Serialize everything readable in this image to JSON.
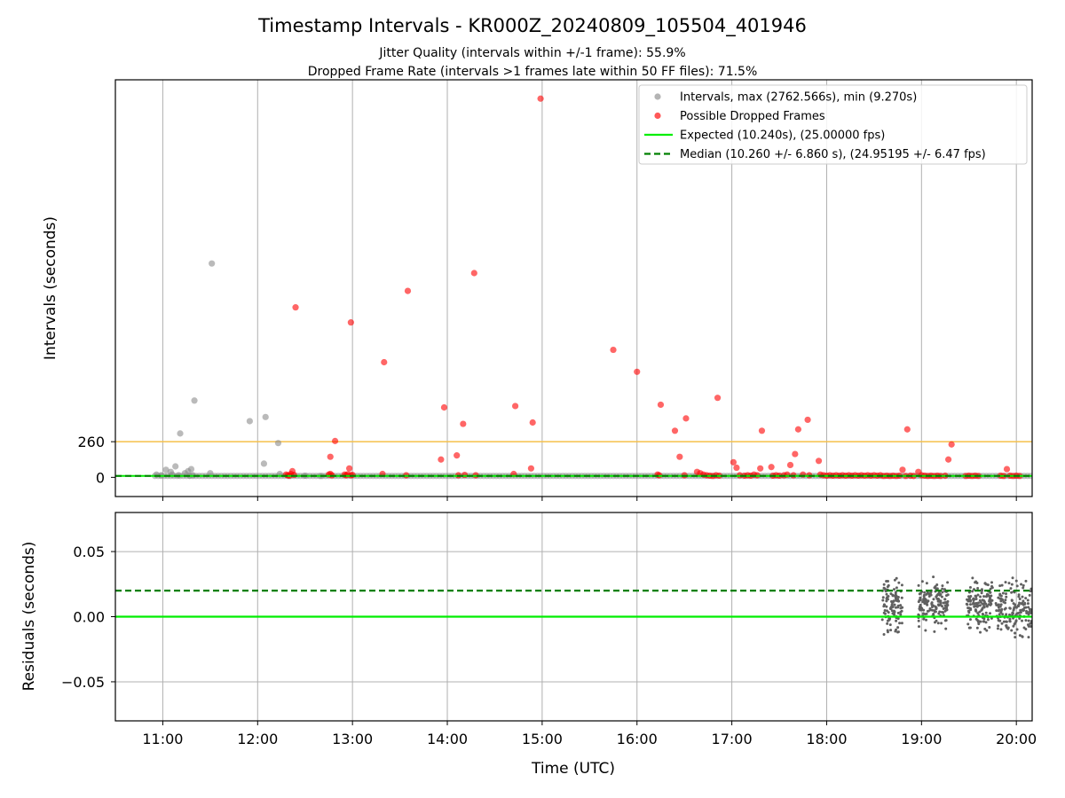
{
  "colors": {
    "frame": "#000000",
    "grid": "#b0b0b0",
    "threshold": "#f5c04a",
    "interval": "#8c8c8c",
    "dropped": "#ff0000",
    "expected": "#00ee00",
    "median": "#008000",
    "residual": "#606060"
  },
  "chart_data": [
    {
      "type": "scatter",
      "title": "Timestamp Intervals - KR000Z_20240809_105504_401946",
      "subtitle_lines": [
        "Jitter Quality (intervals within +/-1 frame): 55.9%",
        "Dropped Frame Rate (intervals >1 frames late within 50 FF files): 71.5%"
      ],
      "xlabel": "",
      "ylabel": "Intervals (seconds)",
      "x_axis": "time_utc",
      "xlim": [
        "10:30",
        "20:10"
      ],
      "ylim": [
        -140,
        2900
      ],
      "yticks": [
        0,
        260
      ],
      "ytick_labels": [
        "0",
        "260"
      ],
      "xgrid": true,
      "ygrid": false,
      "threshold_line": {
        "y": 260
      },
      "legend_position": "top-right",
      "legend": [
        {
          "key": "intervals",
          "marker": "dot",
          "label": "Intervals, max (2762.566s), min (9.270s)"
        },
        {
          "key": "dropped",
          "marker": "dot",
          "label": "Possible Dropped Frames"
        },
        {
          "key": "expected",
          "marker": "line",
          "label": "Expected (10.240s), (25.00000 fps)"
        },
        {
          "key": "median",
          "marker": "dash",
          "label": "Median (10.260 +/- 6.860 s), (24.95195 +/- 6.47 fps)"
        }
      ],
      "lines": {
        "expected": 10.24,
        "median": 10.26
      },
      "series": [
        {
          "name": "Intervals, max (2762.566s), min (9.270s)",
          "points": [
            [
              "10:56",
              20
            ],
            [
              "10:59",
              15
            ],
            [
              "11:02",
              55
            ],
            [
              "11:05",
              40
            ],
            [
              "11:06",
              20
            ],
            [
              "11:08",
              80
            ],
            [
              "11:10",
              15
            ],
            [
              "11:11",
              320
            ],
            [
              "11:14",
              30
            ],
            [
              "11:16",
              45
            ],
            [
              "11:17",
              12
            ],
            [
              "11:18",
              60
            ],
            [
              "11:19",
              15
            ],
            [
              "11:20",
              560
            ],
            [
              "11:30",
              30
            ],
            [
              "11:31",
              1560
            ],
            [
              "11:55",
              410
            ],
            [
              "12:04",
              100
            ],
            [
              "12:05",
              440
            ],
            [
              "12:13",
              250
            ],
            [
              "12:14",
              25
            ],
            [
              "12:20",
              10
            ],
            [
              "12:30",
              12
            ],
            [
              "12:40",
              10
            ]
          ]
        },
        {
          "name": "Possible Dropped Frames",
          "points": [
            [
              "12:18",
              20
            ],
            [
              "12:19",
              15
            ],
            [
              "12:20",
              12
            ],
            [
              "12:21",
              25
            ],
            [
              "12:22",
              45
            ],
            [
              "12:23",
              18
            ],
            [
              "12:24",
              1240
            ],
            [
              "12:45",
              20
            ],
            [
              "12:46",
              25
            ],
            [
              "12:47",
              15
            ],
            [
              "12:46",
              150
            ],
            [
              "12:49",
              265
            ],
            [
              "12:55",
              20
            ],
            [
              "12:56",
              15
            ],
            [
              "12:57",
              22
            ],
            [
              "12:58",
              65
            ],
            [
              "12:59",
              15
            ],
            [
              "13:00",
              18
            ],
            [
              "12:59",
              1130
            ],
            [
              "13:19",
              25
            ],
            [
              "13:20",
              840
            ],
            [
              "13:34",
              15
            ],
            [
              "13:35",
              1360
            ],
            [
              "13:56",
              130
            ],
            [
              "13:58",
              510
            ],
            [
              "14:06",
              160
            ],
            [
              "14:07",
              15
            ],
            [
              "14:10",
              390
            ],
            [
              "14:11",
              18
            ],
            [
              "14:17",
              1490
            ],
            [
              "14:18",
              15
            ],
            [
              "14:42",
              25
            ],
            [
              "14:43",
              520
            ],
            [
              "14:53",
              65
            ],
            [
              "14:54",
              400
            ],
            [
              "14:59",
              2762.566
            ],
            [
              "15:45",
              930
            ],
            [
              "16:00",
              770
            ],
            [
              "16:13",
              20
            ],
            [
              "16:14",
              15
            ],
            [
              "16:15",
              530
            ],
            [
              "16:24",
              340
            ],
            [
              "16:27",
              150
            ],
            [
              "16:30",
              15
            ],
            [
              "16:31",
              430
            ],
            [
              "16:38",
              40
            ],
            [
              "16:40",
              30
            ],
            [
              "16:42",
              20
            ],
            [
              "16:44",
              15
            ],
            [
              "16:46",
              12
            ],
            [
              "16:48",
              10
            ],
            [
              "16:50",
              15
            ],
            [
              "16:51",
              580
            ],
            [
              "16:52",
              12
            ],
            [
              "17:01",
              110
            ],
            [
              "17:03",
              70
            ],
            [
              "17:05",
              15
            ],
            [
              "17:08",
              12
            ],
            [
              "17:10",
              15
            ],
            [
              "17:12",
              12
            ],
            [
              "17:14",
              20
            ],
            [
              "17:16",
              15
            ],
            [
              "17:18",
              65
            ],
            [
              "17:19",
              340
            ],
            [
              "17:25",
              75
            ],
            [
              "17:26",
              12
            ],
            [
              "17:28",
              15
            ],
            [
              "17:30",
              12
            ],
            [
              "17:33",
              15
            ],
            [
              "17:35",
              20
            ],
            [
              "17:37",
              90
            ],
            [
              "17:39",
              15
            ],
            [
              "17:40",
              170
            ],
            [
              "17:42",
              350
            ],
            [
              "17:45",
              20
            ],
            [
              "17:48",
              420
            ],
            [
              "17:49",
              15
            ],
            [
              "17:55",
              120
            ],
            [
              "17:56",
              20
            ],
            [
              "17:58",
              15
            ],
            [
              "18:00",
              12
            ],
            [
              "18:02",
              15
            ],
            [
              "18:04",
              12
            ],
            [
              "18:06",
              15
            ],
            [
              "18:08",
              12
            ],
            [
              "18:10",
              15
            ],
            [
              "18:12",
              12
            ],
            [
              "18:14",
              15
            ],
            [
              "18:16",
              12
            ],
            [
              "18:18",
              15
            ],
            [
              "18:20",
              12
            ],
            [
              "18:22",
              15
            ],
            [
              "18:24",
              12
            ],
            [
              "18:26",
              15
            ],
            [
              "18:28",
              12
            ],
            [
              "18:30",
              15
            ],
            [
              "18:32",
              12
            ],
            [
              "18:34",
              15
            ],
            [
              "18:36",
              10
            ],
            [
              "18:38",
              12
            ],
            [
              "18:40",
              10
            ],
            [
              "18:42",
              12
            ],
            [
              "18:44",
              10
            ],
            [
              "18:46",
              12
            ],
            [
              "18:48",
              55
            ],
            [
              "18:50",
              10
            ],
            [
              "18:51",
              350
            ],
            [
              "18:53",
              12
            ],
            [
              "18:55",
              10
            ],
            [
              "18:58",
              40
            ],
            [
              "19:00",
              15
            ],
            [
              "19:02",
              12
            ],
            [
              "19:04",
              10
            ],
            [
              "19:06",
              12
            ],
            [
              "19:08",
              10
            ],
            [
              "19:10",
              12
            ],
            [
              "19:12",
              10
            ],
            [
              "19:15",
              12
            ],
            [
              "19:17",
              130
            ],
            [
              "19:19",
              240
            ],
            [
              "19:28",
              10
            ],
            [
              "19:30",
              12
            ],
            [
              "19:32",
              10
            ],
            [
              "19:34",
              12
            ],
            [
              "19:36",
              10
            ],
            [
              "19:50",
              12
            ],
            [
              "19:52",
              10
            ],
            [
              "19:54",
              60
            ],
            [
              "19:56",
              12
            ],
            [
              "19:58",
              10
            ],
            [
              "20:00",
              12
            ],
            [
              "20:02",
              10
            ]
          ]
        }
      ]
    },
    {
      "type": "scatter",
      "xlabel": "Time (UTC)",
      "ylabel": "Residuals (seconds)",
      "x_axis": "time_utc",
      "xlim": [
        "10:30",
        "20:10"
      ],
      "ylim": [
        -0.08,
        0.08
      ],
      "yticks": [
        -0.05,
        0.0,
        0.05
      ],
      "ytick_labels": [
        "−0.05",
        "0.00",
        "0.05"
      ],
      "xticks": [
        "11:00",
        "12:00",
        "13:00",
        "14:00",
        "15:00",
        "16:00",
        "17:00",
        "18:00",
        "19:00",
        "20:00"
      ],
      "xgrid": true,
      "ygrid": true,
      "lines": {
        "expected": 0.0,
        "median": 0.02
      },
      "residual_clusters": [
        {
          "start": "18:35",
          "end": "18:48",
          "center": 0.008,
          "spread": 0.018,
          "count": 110
        },
        {
          "start": "18:58",
          "end": "19:17",
          "center": 0.01,
          "spread": 0.016,
          "count": 150
        },
        {
          "start": "19:28",
          "end": "19:45",
          "center": 0.01,
          "spread": 0.016,
          "count": 140
        },
        {
          "start": "19:47",
          "end": "20:10",
          "center": 0.005,
          "spread": 0.018,
          "count": 170
        }
      ]
    }
  ]
}
